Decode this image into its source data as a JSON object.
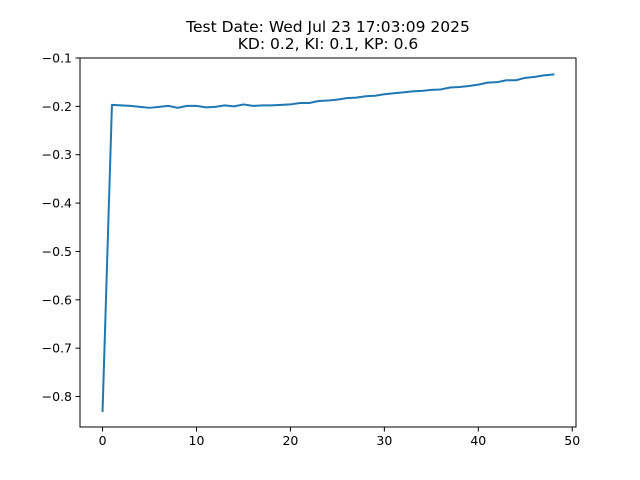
{
  "chart_data": {
    "type": "line",
    "title_lines": [
      "Test Date: Wed Jul 23 17:03:09 2025",
      "KD: 0.2, KI: 0.1, KP: 0.6"
    ],
    "xlabel": "",
    "ylabel": "",
    "xlim": [
      -2.4,
      50.4
    ],
    "ylim": [
      -0.863,
      -0.1
    ],
    "x_ticks": [
      0,
      10,
      20,
      30,
      40,
      50
    ],
    "y_ticks": [
      -0.8,
      -0.7,
      -0.6,
      -0.5,
      -0.4,
      -0.3,
      -0.2,
      -0.1
    ],
    "x_tick_labels": [
      "0",
      "10",
      "20",
      "30",
      "40",
      "50"
    ],
    "y_tick_labels": [
      "−0.8",
      "−0.7",
      "−0.6",
      "−0.5",
      "−0.4",
      "−0.3",
      "−0.2",
      "−0.1"
    ],
    "grid": false,
    "series": [
      {
        "color": "#1f77b4",
        "x": [
          0,
          1,
          2,
          3,
          4,
          5,
          6,
          7,
          8,
          9,
          10,
          11,
          12,
          13,
          14,
          15,
          16,
          17,
          18,
          19,
          20,
          21,
          22,
          23,
          24,
          25,
          26,
          27,
          28,
          29,
          30,
          31,
          32,
          33,
          34,
          35,
          36,
          37,
          38,
          39,
          40,
          41,
          42,
          43,
          44,
          45,
          46,
          47,
          48
        ],
        "y": [
          -0.83,
          -0.197,
          -0.198,
          -0.199,
          -0.201,
          -0.203,
          -0.201,
          -0.199,
          -0.203,
          -0.199,
          -0.199,
          -0.202,
          -0.201,
          -0.198,
          -0.2,
          -0.196,
          -0.199,
          -0.198,
          -0.198,
          -0.197,
          -0.196,
          -0.193,
          -0.193,
          -0.189,
          -0.188,
          -0.186,
          -0.183,
          -0.182,
          -0.179,
          -0.178,
          -0.175,
          -0.173,
          -0.171,
          -0.169,
          -0.168,
          -0.166,
          -0.165,
          -0.161,
          -0.16,
          -0.158,
          -0.155,
          -0.151,
          -0.15,
          -0.146,
          -0.146,
          -0.141,
          -0.139,
          -0.136,
          -0.134
        ]
      }
    ]
  }
}
